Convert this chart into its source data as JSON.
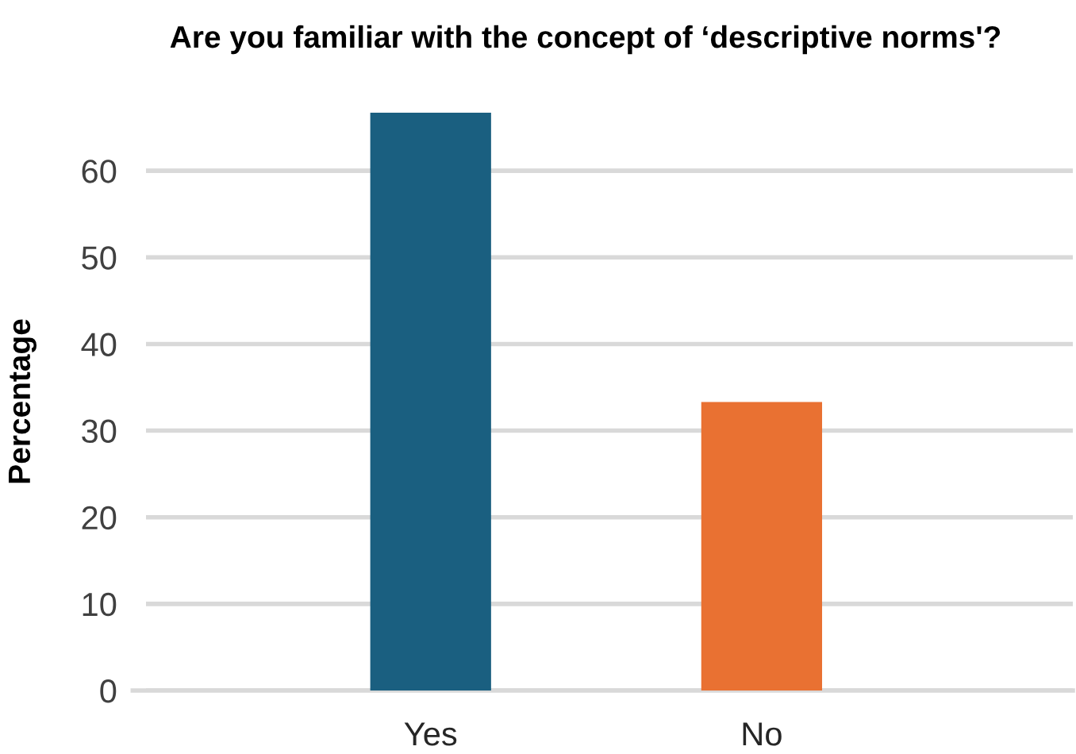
{
  "chart_data": {
    "type": "bar",
    "title": "Are you familiar with the concept of ‘descriptive norms'?",
    "ylabel": "Percentage",
    "categories": [
      "Yes",
      "No"
    ],
    "values": [
      66.7,
      33.3
    ],
    "colors": [
      "#1a5f80",
      "#e97132"
    ],
    "ylim": [
      0,
      66.7
    ],
    "yticks": [
      0,
      10,
      20,
      30,
      40,
      50,
      60
    ],
    "grid": "y",
    "legend": false
  }
}
